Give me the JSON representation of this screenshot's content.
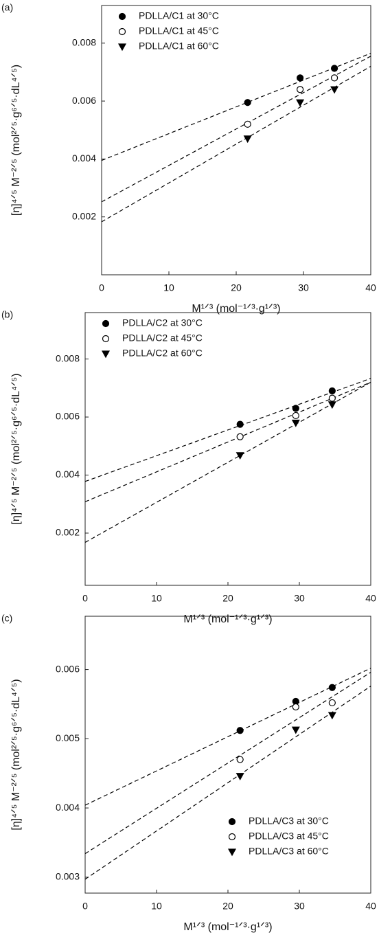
{
  "chart_data": [
    {
      "type": "scatter",
      "panel_label": "(a)",
      "x_label": "M¹ᐟ³ (mol⁻¹ᐟ³·g¹ᐟ³)",
      "y_label": "[η]⁴ᐟ⁵ M⁻²ᐟ⁵ (mol²ᐟ⁵·g⁶ᐟ⁵·dL⁴ᐟ⁵)",
      "xlim": [
        0,
        40
      ],
      "ylim": [
        0,
        0.0093
      ],
      "xticks": [
        0,
        10,
        20,
        30,
        40
      ],
      "yticks": [
        0.002,
        0.004,
        0.006,
        0.008
      ],
      "legend": "upper left",
      "x": [
        21.7,
        29.5,
        34.6
      ],
      "fit_x": [
        0,
        40
      ],
      "series": [
        {
          "name": "PDLLA/C1 at 30°C",
          "color": "#000000",
          "marker": "filled-circle",
          "values": [
            0.00595,
            0.0068,
            0.00713
          ],
          "fit": [
            0.00395,
            0.00765
          ]
        },
        {
          "name": "PDLLA/C1 at 45°C",
          "color": "#000000",
          "marker": "open-circle",
          "values": [
            0.0052,
            0.0064,
            0.0068
          ],
          "fit": [
            0.00252,
            0.00755
          ]
        },
        {
          "name": "PDLLA/C1 at 60°C",
          "color": "#000000",
          "marker": "filled-triangle-down",
          "values": [
            0.0047,
            0.00595,
            0.0064
          ],
          "fit": [
            0.00183,
            0.0072
          ]
        }
      ]
    },
    {
      "type": "scatter",
      "panel_label": "(b)",
      "x_label": "M¹ᐟ³ (mol⁻¹ᐟ³·g¹ᐟ³)",
      "y_label": "[η]⁴ᐟ⁵ M⁻²ᐟ⁵ (mol²ᐟ⁵·g⁶ᐟ⁵·dL⁴ᐟ⁵)",
      "xlim": [
        0,
        40
      ],
      "ylim": [
        0.0002,
        0.0096
      ],
      "xticks": [
        0,
        10,
        20,
        30,
        40
      ],
      "yticks": [
        0.002,
        0.004,
        0.006,
        0.008
      ],
      "legend": "upper left",
      "x": [
        21.7,
        29.5,
        34.6
      ],
      "fit_x": [
        0,
        40
      ],
      "series": [
        {
          "name": "PDLLA/C2 at 30°C",
          "color": "#000000",
          "marker": "filled-circle",
          "values": [
            0.00575,
            0.0063,
            0.0069
          ],
          "fit": [
            0.00378,
            0.00733
          ]
        },
        {
          "name": "PDLLA/C2 at 45°C",
          "color": "#000000",
          "marker": "open-circle",
          "values": [
            0.00532,
            0.00605,
            0.00665
          ],
          "fit": [
            0.00308,
            0.0072
          ]
        },
        {
          "name": "PDLLA/C2 at 60°C",
          "color": "#000000",
          "marker": "filled-triangle-down",
          "values": [
            0.00468,
            0.0058,
            0.00643
          ],
          "fit": [
            0.00168,
            0.0072
          ]
        }
      ]
    },
    {
      "type": "scatter",
      "panel_label": "(c)",
      "x_label": "M¹ᐟ³ (mol⁻¹ᐟ³·g¹ᐟ³)",
      "y_label": "[η]⁴ᐟ⁵ M⁻²ᐟ⁵ (mol²ᐟ⁵·g⁶ᐟ⁵·dL⁴ᐟ⁵)",
      "xlim": [
        0,
        40
      ],
      "ylim": [
        0.00277,
        0.00677
      ],
      "xticks": [
        0,
        10,
        20,
        30,
        40
      ],
      "yticks": [
        0.003,
        0.004,
        0.005,
        0.006
      ],
      "legend": "lower right",
      "x": [
        21.7,
        29.5,
        34.6
      ],
      "fit_x": [
        0,
        40
      ],
      "series": [
        {
          "name": "PDLLA/C3 at 30°C",
          "color": "#000000",
          "marker": "filled-circle",
          "values": [
            0.00512,
            0.00554,
            0.00574
          ],
          "fit": [
            0.00404,
            0.00602
          ]
        },
        {
          "name": "PDLLA/C3 at 45°C",
          "color": "#000000",
          "marker": "open-circle",
          "values": [
            0.0047,
            0.00546,
            0.00552
          ],
          "fit": [
            0.00334,
            0.00596
          ]
        },
        {
          "name": "PDLLA/C3 at 60°C",
          "color": "#000000",
          "marker": "filled-triangle-down",
          "values": [
            0.00446,
            0.00513,
            0.00534
          ],
          "fit": [
            0.00297,
            0.00576
          ]
        }
      ]
    }
  ]
}
